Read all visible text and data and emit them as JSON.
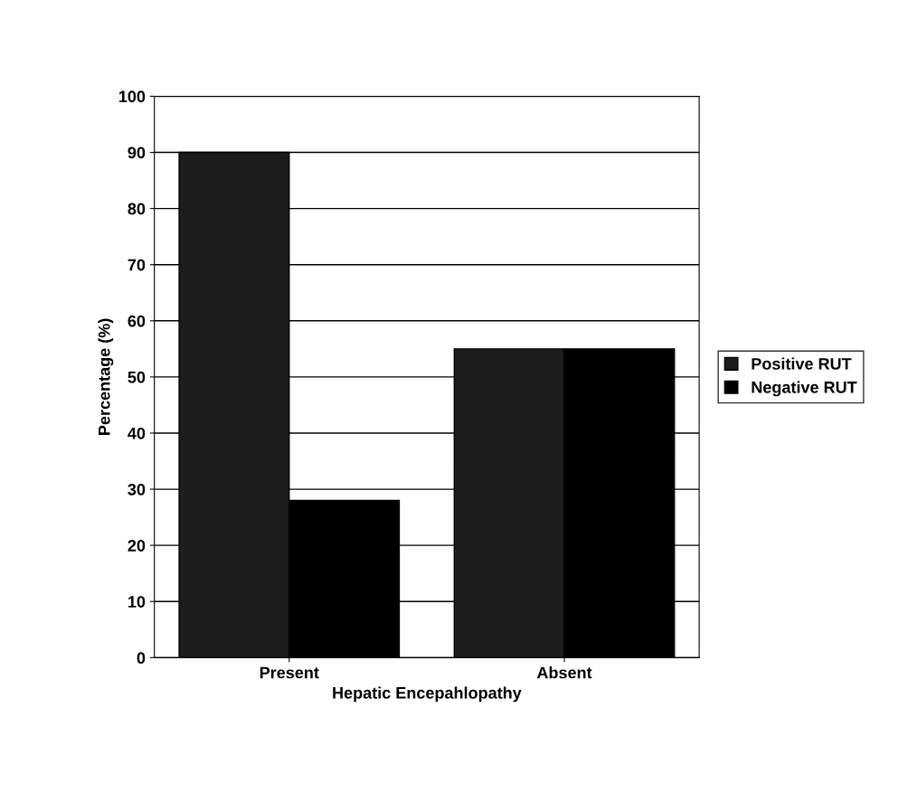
{
  "chart_data": {
    "type": "bar",
    "xlabel": "Hepatic Encepahlopathy",
    "ylabel": "Percentage (%)",
    "categories": [
      "Present",
      "Absent"
    ],
    "series": [
      {
        "name": "Positive RUT",
        "color": "#1c1c1c",
        "values": [
          90,
          55
        ]
      },
      {
        "name": "Negative RUT",
        "color": "#000000",
        "values": [
          28,
          55
        ]
      }
    ],
    "ylim": [
      0,
      100
    ],
    "yticks": [
      0,
      10,
      20,
      30,
      40,
      50,
      60,
      70,
      80,
      90,
      100
    ],
    "grid": "y",
    "legend": "right"
  }
}
